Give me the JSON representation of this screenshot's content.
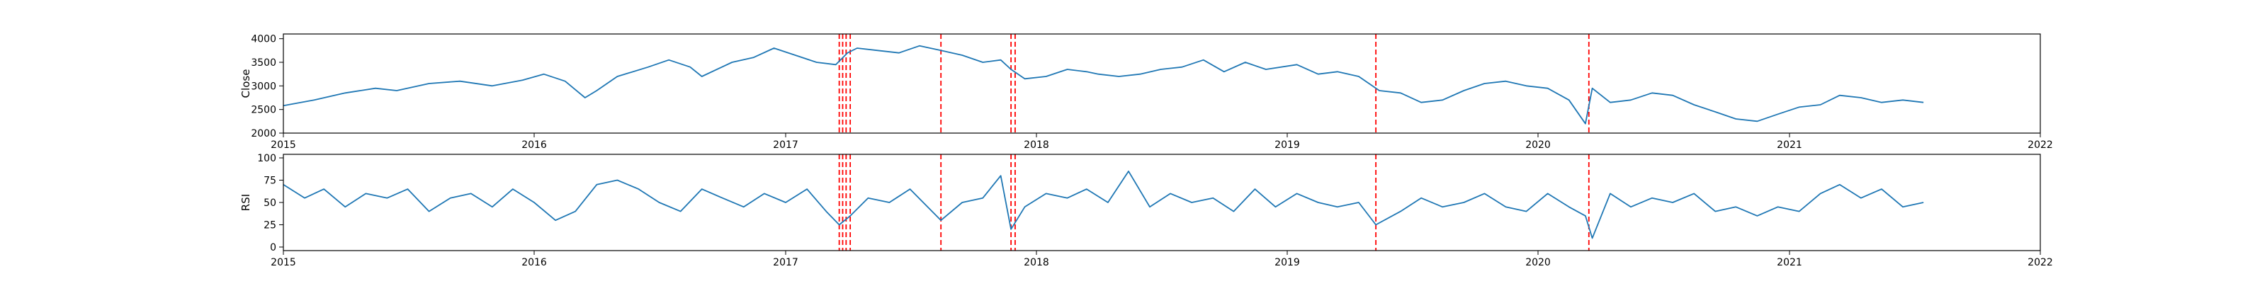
{
  "chart_data": [
    {
      "type": "line",
      "ylabel": "Close",
      "xlabel": "",
      "xlim": [
        "2015-01-01",
        "2022-01-01"
      ],
      "ylim": [
        2000,
        4100
      ],
      "x_ticks": [
        "2015",
        "2016",
        "2017",
        "2018",
        "2019",
        "2020",
        "2021",
        "2022"
      ],
      "y_ticks": [
        2000,
        2500,
        3000,
        3500,
        4000
      ],
      "line_color": "#1f77b4",
      "series": [
        {
          "x": [
            "2015-01-01",
            "2015-02-15",
            "2015-04-01",
            "2015-05-15",
            "2015-06-15",
            "2015-08-01",
            "2015-09-15",
            "2015-11-01",
            "2015-12-15",
            "2016-01-15",
            "2016-02-15",
            "2016-03-15",
            "2016-04-01",
            "2016-05-01",
            "2016-06-15",
            "2016-07-15",
            "2016-08-15",
            "2016-09-01",
            "2016-10-15",
            "2016-11-15",
            "2016-12-15",
            "2017-01-15",
            "2017-02-15",
            "2017-03-15",
            "2017-04-01",
            "2017-04-15",
            "2017-05-15",
            "2017-06-15",
            "2017-07-15",
            "2017-08-15",
            "2017-09-15",
            "2017-10-15",
            "2017-11-10",
            "2017-11-25",
            "2017-12-15",
            "2018-01-15",
            "2018-02-15",
            "2018-03-15",
            "2018-04-01",
            "2018-05-01",
            "2018-06-01",
            "2018-07-01",
            "2018-08-01",
            "2018-09-01",
            "2018-10-01",
            "2018-11-01",
            "2018-12-01",
            "2019-01-15",
            "2019-02-15",
            "2019-03-15",
            "2019-04-15",
            "2019-05-15",
            "2019-06-15",
            "2019-07-15",
            "2019-08-15",
            "2019-09-15",
            "2019-10-15",
            "2019-11-15",
            "2019-12-15",
            "2020-01-15",
            "2020-02-15",
            "2020-03-10",
            "2020-03-20",
            "2020-04-15",
            "2020-05-15",
            "2020-06-15",
            "2020-07-15",
            "2020-08-15",
            "2020-09-15",
            "2020-10-15",
            "2020-11-15",
            "2020-12-15",
            "2021-01-15",
            "2021-02-15",
            "2021-03-15",
            "2021-04-15",
            "2021-05-15",
            "2021-06-15",
            "2021-07-15"
          ],
          "values": [
            2580,
            2700,
            2850,
            2950,
            2900,
            3050,
            3100,
            3000,
            3120,
            3250,
            3100,
            2750,
            2900,
            3200,
            3400,
            3550,
            3400,
            3200,
            3500,
            3600,
            3800,
            3650,
            3500,
            3450,
            3700,
            3800,
            3750,
            3700,
            3850,
            3750,
            3650,
            3500,
            3550,
            3350,
            3150,
            3200,
            3350,
            3300,
            3250,
            3200,
            3250,
            3350,
            3400,
            3550,
            3300,
            3500,
            3350,
            3450,
            3250,
            3300,
            3200,
            2900,
            2850,
            2650,
            2700,
            2900,
            3050,
            3100,
            3000,
            2950,
            2700,
            2200,
            2950,
            2650,
            2700,
            2850,
            2800,
            2600,
            2450,
            2300,
            2250,
            2400,
            2550,
            2600,
            2800,
            2750,
            2650,
            2700,
            2650
          ]
        }
      ],
      "event_dates": [
        "2017-03-20",
        "2017-03-25",
        "2017-03-30",
        "2017-04-05",
        "2017-08-15",
        "2017-11-25",
        "2017-12-01",
        "2019-05-10",
        "2020-03-15"
      ],
      "event_color": "#ff0000"
    },
    {
      "type": "line",
      "ylabel": "RSI",
      "xlabel": "",
      "xlim": [
        "2015-01-01",
        "2022-01-01"
      ],
      "ylim": [
        -4,
        104
      ],
      "x_ticks": [
        "2015",
        "2016",
        "2017",
        "2018",
        "2019",
        "2020",
        "2021",
        "2022"
      ],
      "y_ticks": [
        0,
        25,
        50,
        75,
        100
      ],
      "line_color": "#1f77b4",
      "series": [
        {
          "x": [
            "2015-01-01",
            "2015-02-01",
            "2015-03-01",
            "2015-04-01",
            "2015-05-01",
            "2015-06-01",
            "2015-07-01",
            "2015-08-01",
            "2015-09-01",
            "2015-10-01",
            "2015-11-01",
            "2015-12-01",
            "2016-01-01",
            "2016-02-01",
            "2016-03-01",
            "2016-04-01",
            "2016-05-01",
            "2016-06-01",
            "2016-07-01",
            "2016-08-01",
            "2016-09-01",
            "2016-10-01",
            "2016-11-01",
            "2016-12-01",
            "2017-01-01",
            "2017-02-01",
            "2017-03-01",
            "2017-03-20",
            "2017-04-05",
            "2017-05-01",
            "2017-06-01",
            "2017-07-01",
            "2017-08-15",
            "2017-09-15",
            "2017-10-15",
            "2017-11-10",
            "2017-11-25",
            "2017-12-15",
            "2018-01-15",
            "2018-02-15",
            "2018-03-15",
            "2018-04-15",
            "2018-05-15",
            "2018-06-15",
            "2018-07-15",
            "2018-08-15",
            "2018-09-15",
            "2018-10-15",
            "2018-11-15",
            "2018-12-15",
            "2019-01-15",
            "2019-02-15",
            "2019-03-15",
            "2019-04-15",
            "2019-05-10",
            "2019-06-15",
            "2019-07-15",
            "2019-08-15",
            "2019-09-15",
            "2019-10-15",
            "2019-11-15",
            "2019-12-15",
            "2020-01-15",
            "2020-02-15",
            "2020-03-10",
            "2020-03-20",
            "2020-04-15",
            "2020-05-15",
            "2020-06-15",
            "2020-07-15",
            "2020-08-15",
            "2020-09-15",
            "2020-10-15",
            "2020-11-15",
            "2020-12-15",
            "2021-01-15",
            "2021-02-15",
            "2021-03-15",
            "2021-04-15",
            "2021-05-15",
            "2021-06-15",
            "2021-07-15"
          ],
          "values": [
            70,
            55,
            65,
            45,
            60,
            55,
            65,
            40,
            55,
            60,
            45,
            65,
            50,
            30,
            40,
            70,
            75,
            65,
            50,
            40,
            65,
            55,
            45,
            60,
            50,
            65,
            40,
            25,
            35,
            55,
            50,
            65,
            30,
            50,
            55,
            80,
            20,
            45,
            60,
            55,
            65,
            50,
            85,
            45,
            60,
            50,
            55,
            40,
            65,
            45,
            60,
            50,
            45,
            50,
            25,
            40,
            55,
            45,
            50,
            60,
            45,
            40,
            60,
            45,
            35,
            10,
            60,
            45,
            55,
            50,
            60,
            40,
            45,
            35,
            45,
            40,
            60,
            70,
            55,
            65,
            45,
            50
          ]
        }
      ],
      "event_dates": [
        "2017-03-20",
        "2017-03-25",
        "2017-03-30",
        "2017-04-05",
        "2017-08-15",
        "2017-11-25",
        "2017-12-01",
        "2019-05-10",
        "2020-03-15"
      ],
      "event_color": "#ff0000"
    }
  ]
}
